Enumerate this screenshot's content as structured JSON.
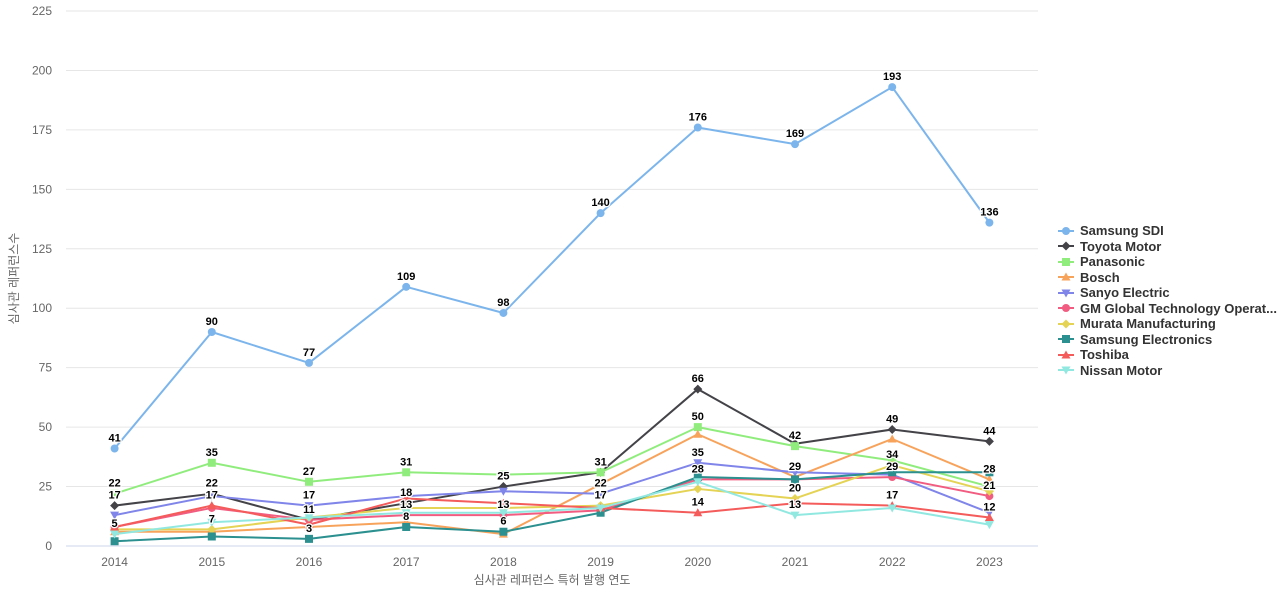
{
  "chart_data": {
    "type": "line",
    "title": "",
    "xlabel": "심사관 레퍼런스 특허 발행 연도",
    "ylabel": "심사관 레퍼런스수",
    "ylim": [
      0,
      225
    ],
    "ytick_step": 25,
    "y_ticks": [
      0,
      25,
      50,
      75,
      100,
      125,
      150,
      175,
      200,
      225
    ],
    "grid": true,
    "legend_position": "right",
    "grid_color": "#e6e6e6",
    "axis_line_color": "#ccd6eb",
    "tick_label_color": "#666666",
    "legend_text_color": "#333333",
    "categories": [
      "2014",
      "2015",
      "2016",
      "2017",
      "2018",
      "2019",
      "2020",
      "2021",
      "2022",
      "2023"
    ],
    "series": [
      {
        "name": "Samsung SDI",
        "color": "#7cb5ec",
        "marker": "circle",
        "values": [
          41,
          90,
          77,
          109,
          98,
          140,
          176,
          169,
          193,
          136
        ],
        "labeled": [
          1,
          1,
          1,
          1,
          1,
          1,
          1,
          1,
          1,
          1
        ]
      },
      {
        "name": "Toyota Motor",
        "color": "#434348",
        "marker": "diamond",
        "values": [
          17,
          22,
          11,
          18,
          25,
          31,
          66,
          43,
          49,
          44
        ],
        "labeled": [
          1,
          1,
          1,
          1,
          1,
          0,
          1,
          0,
          1,
          1
        ]
      },
      {
        "name": "Panasonic",
        "color": "#90ed7d",
        "marker": "square",
        "values": [
          22,
          35,
          27,
          31,
          30,
          31,
          50,
          42,
          36,
          25
        ],
        "labeled": [
          1,
          1,
          1,
          1,
          0,
          1,
          1,
          1,
          0,
          0
        ]
      },
      {
        "name": "Bosch",
        "color": "#f7a35c",
        "marker": "triangle",
        "values": [
          6,
          6,
          8,
          10,
          5,
          26,
          47,
          29,
          45,
          28
        ],
        "labeled": [
          0,
          0,
          0,
          0,
          0,
          0,
          0,
          1,
          0,
          1
        ]
      },
      {
        "name": "Sanyo Electric",
        "color": "#8085e9",
        "marker": "triangle-down",
        "values": [
          13,
          21,
          17,
          21,
          23,
          22,
          35,
          31,
          30,
          14
        ],
        "labeled": [
          0,
          0,
          1,
          0,
          0,
          1,
          1,
          0,
          0,
          0
        ]
      },
      {
        "name": "GM Global Technology Operat...",
        "color": "#f15c80",
        "marker": "circle",
        "values": [
          8,
          16,
          11,
          13,
          13,
          15,
          28,
          28,
          29,
          21
        ],
        "labeled": [
          0,
          0,
          0,
          1,
          1,
          0,
          1,
          0,
          1,
          1
        ]
      },
      {
        "name": "Murata Manufacturing",
        "color": "#e4d354",
        "marker": "diamond",
        "values": [
          7,
          7,
          12,
          16,
          16,
          17,
          24,
          20,
          34,
          23
        ],
        "labeled": [
          0,
          1,
          0,
          0,
          0,
          1,
          0,
          1,
          1,
          0
        ]
      },
      {
        "name": "Samsung Electronics",
        "color": "#2b908f",
        "marker": "square",
        "values": [
          2,
          4,
          3,
          8,
          6,
          14,
          29,
          28,
          31,
          31
        ],
        "labeled": [
          0,
          0,
          1,
          1,
          1,
          0,
          0,
          0,
          0,
          0
        ]
      },
      {
        "name": "Toshiba",
        "color": "#f45b5b",
        "marker": "triangle",
        "values": [
          8,
          17,
          9,
          20,
          18,
          16,
          14,
          18,
          17,
          12
        ],
        "labeled": [
          0,
          1,
          0,
          0,
          0,
          0,
          1,
          0,
          1,
          1
        ]
      },
      {
        "name": "Nissan Motor",
        "color": "#91e8e1",
        "marker": "triangle-down",
        "values": [
          5,
          10,
          12,
          14,
          14,
          16,
          27,
          13,
          16,
          9
        ],
        "labeled": [
          1,
          0,
          0,
          0,
          0,
          0,
          0,
          1,
          0,
          0
        ]
      }
    ]
  }
}
